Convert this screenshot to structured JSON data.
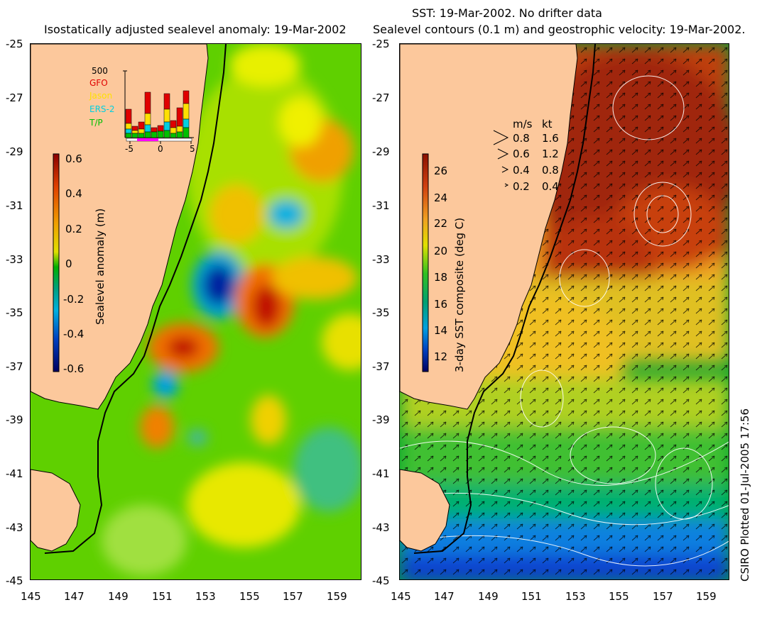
{
  "left_panel": {
    "title": "Isostatically adjusted sealevel anomaly: 19-Mar-2002",
    "colorbar": {
      "label": "Sealevel anomaly (m)",
      "ticks": [
        "0.6",
        "0.4",
        "0.2",
        "0",
        "-0.2",
        "-0.4",
        "-0.6"
      ]
    },
    "inset": {
      "ylabel_top": "500",
      "satellites": [
        {
          "name": "GFO",
          "color": "#e00000"
        },
        {
          "name": "Jason",
          "color": "#ffe000"
        },
        {
          "name": "ERS-2",
          "color": "#00d0e0"
        },
        {
          "name": "T/P",
          "color": "#00c000"
        }
      ],
      "x_ticks": [
        "-5",
        "0",
        "5"
      ]
    }
  },
  "right_panel": {
    "title_line1": "SST: 19-Mar-2002. No drifter data",
    "title_line2": "Sealevel contours (0.1 m) and geostrophic velocity: 19-Mar-2002.",
    "colorbar": {
      "label": "3-day SST composite (deg C)",
      "ticks": [
        "26",
        "24",
        "22",
        "20",
        "18",
        "16",
        "14",
        "12"
      ]
    },
    "velocity_legend": {
      "header_ms": "m/s",
      "header_kt": "kt",
      "rows": [
        {
          "ms": "0.8",
          "kt": "1.6"
        },
        {
          "ms": "0.6",
          "kt": "1.2"
        },
        {
          "ms": "0.4",
          "kt": "0.8"
        },
        {
          "ms": "0.2",
          "kt": "0.4"
        }
      ]
    }
  },
  "axes": {
    "lat_ticks": [
      "-25",
      "-27",
      "-29",
      "-31",
      "-33",
      "-35",
      "-37",
      "-39",
      "-41",
      "-43",
      "-45"
    ],
    "lon_ticks": [
      "145",
      "147",
      "149",
      "151",
      "153",
      "155",
      "157",
      "159"
    ]
  },
  "credit": "CSIRO Plotted 01-Jul-2005 17:56",
  "colors": {
    "land": "#fcc89c",
    "coastline": "#000000"
  }
}
